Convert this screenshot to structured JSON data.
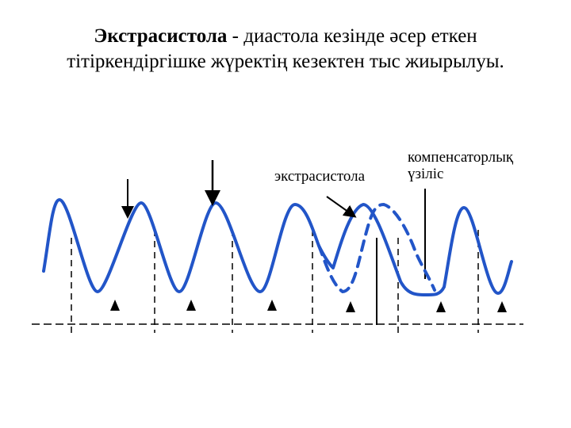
{
  "title": {
    "term": "Экстрасистола",
    "dash": " - ",
    "rest_line1": "диастола кезінде әсер еткен",
    "line2": "тітіркендіргішке жүректің кезектен тыс жиырылуы."
  },
  "labels": {
    "extrasystole": "экстрасистола",
    "compensatory_line1": "компенсаторлық",
    "compensatory_line2": "үзіліс"
  },
  "colors": {
    "wave": "#2255c8",
    "lines": "#000000"
  }
}
